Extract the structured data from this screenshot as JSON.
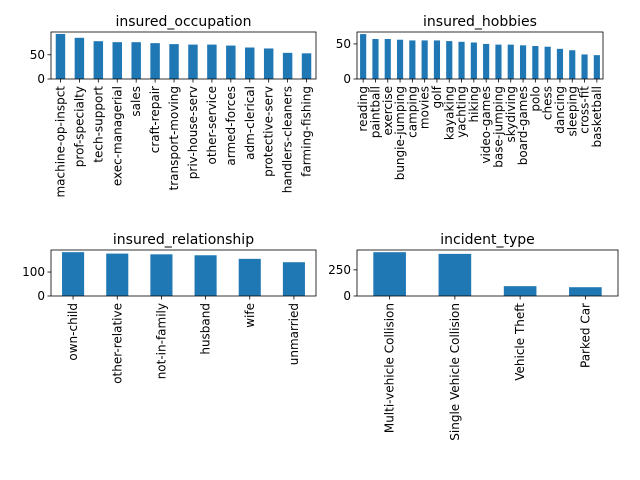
{
  "chart_data": [
    {
      "type": "bar",
      "title": "insured_occupation",
      "categories": [
        "machine-op-inspct",
        "prof-specialty",
        "tech-support",
        "exec-managerial",
        "sales",
        "craft-repair",
        "transport-moving",
        "priv-house-serv",
        "other-service",
        "armed-forces",
        "adm-clerical",
        "protective-serv",
        "handlers-cleaners",
        "farming-fishing"
      ],
      "values": [
        93,
        85,
        78,
        76,
        76,
        74,
        72,
        71,
        71,
        69,
        65,
        63,
        54,
        53
      ],
      "yticks": [
        0,
        50
      ],
      "ylim": [
        0,
        97
      ],
      "color": "#1f77b4"
    },
    {
      "type": "bar",
      "title": "insured_hobbies",
      "categories": [
        "reading",
        "paintball",
        "exercise",
        "bungie-jumping",
        "camping",
        "movies",
        "golf",
        "kayaking",
        "yachting",
        "hiking",
        "video-games",
        "base-jumping",
        "skydiving",
        "board-games",
        "polo",
        "chess",
        "dancing",
        "sleeping",
        "cross-fit",
        "basketball"
      ],
      "values": [
        64,
        57,
        57,
        56,
        55,
        55,
        55,
        54,
        53,
        52,
        50,
        49,
        49,
        48,
        47,
        46,
        43,
        41,
        35,
        34
      ],
      "yticks": [
        0,
        50
      ],
      "ylim": [
        0,
        67
      ],
      "color": "#1f77b4"
    },
    {
      "type": "bar",
      "title": "insured_relationship",
      "categories": [
        "own-child",
        "other-relative",
        "not-in-family",
        "husband",
        "wife",
        "unmarried"
      ],
      "values": [
        183,
        177,
        174,
        170,
        155,
        141
      ],
      "yticks": [
        0,
        100
      ],
      "ylim": [
        0,
        192
      ],
      "color": "#1f77b4"
    },
    {
      "type": "bar",
      "title": "incident_type",
      "categories": [
        "Multi-vehicle Collision",
        "Single Vehicle Collision",
        "Vehicle Theft",
        "Parked Car"
      ],
      "values": [
        419,
        403,
        94,
        84
      ],
      "yticks": [
        0,
        250
      ],
      "ylim": [
        0,
        440
      ],
      "color": "#1f77b4"
    }
  ]
}
